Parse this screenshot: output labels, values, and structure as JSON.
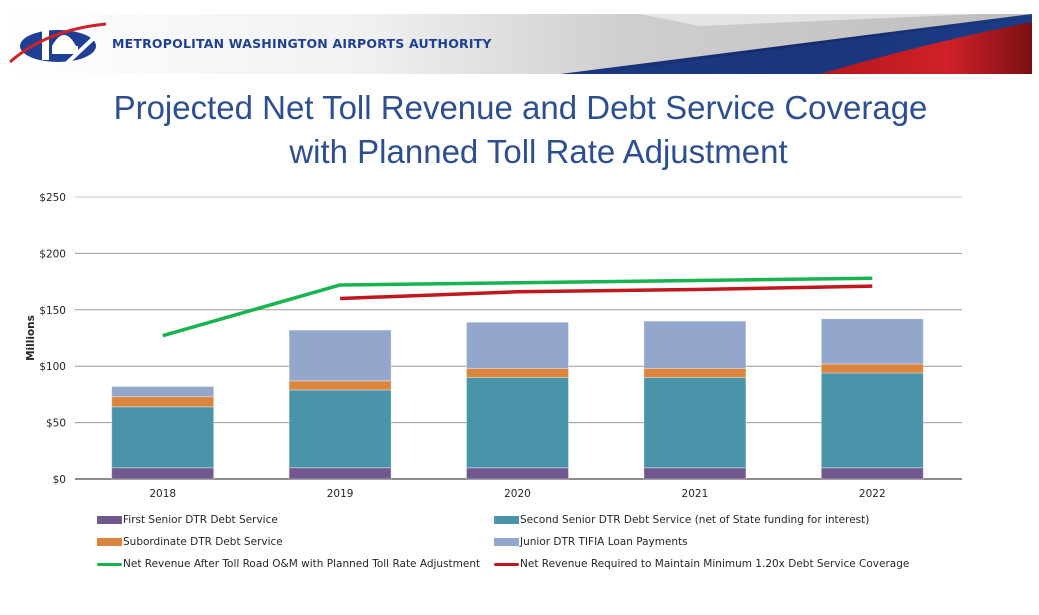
{
  "header": {
    "org_name": "METROPOLITAN WASHINGTON AIRPORTS AUTHORITY",
    "logo_icon": "mwaa-capitol-logo-icon"
  },
  "title": {
    "line1": "Projected Net Toll Revenue and Debt Service Coverage",
    "line2": "with Planned Toll Rate Adjustment"
  },
  "chart_data": {
    "type": "bar",
    "stacked": true,
    "title": "Projected Net Toll Revenue and Debt Service Coverage with Planned Toll Rate Adjustment",
    "xlabel": "",
    "ylabel": "Millions",
    "ylim": [
      0,
      250
    ],
    "yticks": [
      0,
      50,
      100,
      150,
      200,
      250
    ],
    "ytick_labels": [
      "$0",
      "$50",
      "$100",
      "$150",
      "$200",
      "$250"
    ],
    "grid": true,
    "legend_position": "bottom",
    "categories": [
      "2018",
      "2019",
      "2020",
      "2021",
      "2022"
    ],
    "series": [
      {
        "name": "First Senior DTR Debt Service",
        "kind": "bar",
        "color": "#71588F",
        "values": [
          10,
          10,
          10,
          10,
          10
        ]
      },
      {
        "name": "Second Senior DTR Debt Service (net of State funding for interest)",
        "kind": "bar",
        "color": "#4A94AA",
        "values": [
          54,
          69,
          80,
          80,
          84
        ]
      },
      {
        "name": "Subordinate DTR Debt Service",
        "kind": "bar",
        "color": "#DB843D",
        "values": [
          9,
          8,
          8,
          8,
          8
        ]
      },
      {
        "name": "Junior DTR TIFIA Loan Payments",
        "kind": "bar",
        "color": "#93A6CC",
        "values": [
          9,
          45,
          41,
          42,
          40
        ]
      },
      {
        "name": "Net Revenue After Toll Road O&M with Planned Toll Rate Adjustment",
        "kind": "line",
        "color": "#19B350",
        "values": [
          127,
          172,
          174,
          176,
          178
        ]
      },
      {
        "name": "Net Revenue Required to Maintain Minimum 1.20x Debt Service Coverage",
        "kind": "line",
        "color": "#C0181E",
        "values": [
          null,
          160,
          166,
          168,
          171
        ]
      }
    ]
  },
  "legend": {
    "items": [
      {
        "label": "First Senior DTR Debt Service",
        "color": "#71588F",
        "kind": "bar"
      },
      {
        "label": "Second Senior DTR Debt Service (net of State funding for interest)",
        "color": "#4A94AA",
        "kind": "bar"
      },
      {
        "label": "Subordinate DTR Debt Service",
        "color": "#DB843D",
        "kind": "bar"
      },
      {
        "label": "Junior DTR TIFIA Loan Payments",
        "color": "#93A6CC",
        "kind": "bar"
      },
      {
        "label": "Net Revenue After Toll Road O&M with Planned Toll Rate Adjustment",
        "color": "#19B350",
        "kind": "line"
      },
      {
        "label": "Net Revenue Required to Maintain Minimum 1.20x Debt Service Coverage",
        "color": "#C0181E",
        "kind": "line"
      }
    ]
  }
}
